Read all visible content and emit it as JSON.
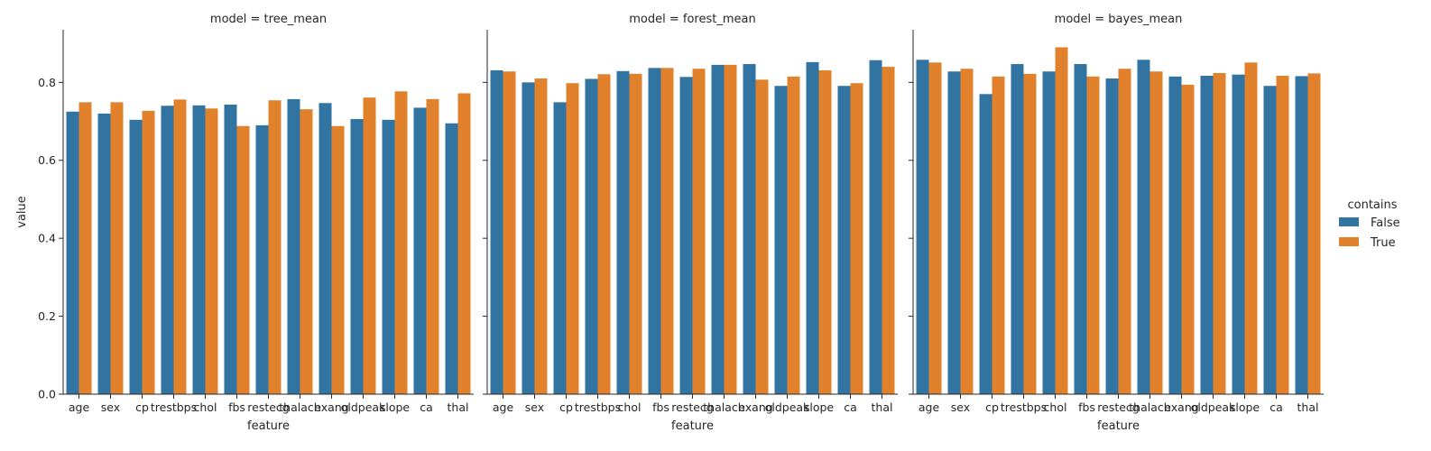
{
  "chart_data": {
    "type": "bar",
    "ylabel": "value",
    "xlabel": "feature",
    "ylim": [
      0,
      0.935
    ],
    "yticks": [
      0.0,
      0.2,
      0.4,
      0.6,
      0.8
    ],
    "ytick_labels": [
      "0.0",
      "0.2",
      "0.4",
      "0.6",
      "0.8"
    ],
    "categories": [
      "age",
      "sex",
      "cp",
      "trestbps",
      "chol",
      "fbs",
      "restecg",
      "thalach",
      "exang",
      "oldpeak",
      "slope",
      "ca",
      "thal"
    ],
    "legend": {
      "title": "contains",
      "placement": "right",
      "entries": [
        {
          "label": "False",
          "color": "#3274a1"
        },
        {
          "label": "True",
          "color": "#e1812c"
        }
      ]
    },
    "facets": [
      {
        "title": "model = tree_mean",
        "series": [
          {
            "name": "False",
            "values": [
              0.725,
              0.72,
              0.704,
              0.74,
              0.741,
              0.743,
              0.69,
              0.757,
              0.747,
              0.706,
              0.704,
              0.735,
              0.695
            ]
          },
          {
            "name": "True",
            "values": [
              0.749,
              0.749,
              0.727,
              0.756,
              0.733,
              0.688,
              0.754,
              0.731,
              0.688,
              0.761,
              0.777,
              0.757,
              0.772
            ]
          }
        ]
      },
      {
        "title": "model = forest_mean",
        "series": [
          {
            "name": "False",
            "values": [
              0.831,
              0.8,
              0.749,
              0.809,
              0.829,
              0.837,
              0.814,
              0.845,
              0.847,
              0.791,
              0.852,
              0.791,
              0.857
            ]
          },
          {
            "name": "True",
            "values": [
              0.828,
              0.81,
              0.798,
              0.821,
              0.822,
              0.837,
              0.835,
              0.845,
              0.807,
              0.815,
              0.831,
              0.798,
              0.84
            ]
          }
        ]
      },
      {
        "title": "model = bayes_mean",
        "series": [
          {
            "name": "False",
            "values": [
              0.858,
              0.828,
              0.77,
              0.847,
              0.828,
              0.847,
              0.81,
              0.858,
              0.815,
              0.817,
              0.82,
              0.791,
              0.816
            ]
          },
          {
            "name": "True",
            "values": [
              0.851,
              0.835,
              0.815,
              0.822,
              0.89,
              0.815,
              0.835,
              0.828,
              0.794,
              0.824,
              0.851,
              0.817,
              0.823
            ]
          }
        ]
      }
    ]
  }
}
